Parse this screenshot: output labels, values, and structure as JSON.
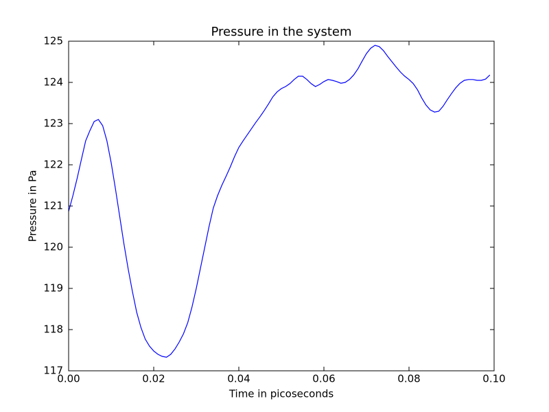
{
  "chart_data": {
    "type": "line",
    "title": "Pressure in the system",
    "xlabel": "Time in picoseconds",
    "ylabel": "Pressure in Pa",
    "x": [
      0,
      0.001,
      0.002,
      0.003,
      0.004,
      0.005,
      0.006,
      0.007,
      0.008,
      0.009,
      0.01,
      0.011,
      0.012,
      0.013,
      0.014,
      0.015,
      0.016,
      0.017,
      0.018,
      0.019,
      0.02,
      0.021,
      0.022,
      0.023,
      0.024,
      0.025,
      0.026,
      0.027,
      0.028,
      0.029,
      0.03,
      0.031,
      0.032,
      0.033,
      0.034,
      0.035,
      0.036,
      0.037,
      0.038,
      0.039,
      0.04,
      0.041,
      0.042,
      0.043,
      0.044,
      0.045,
      0.046,
      0.047,
      0.048,
      0.049,
      0.05,
      0.051,
      0.052,
      0.053,
      0.054,
      0.055,
      0.056,
      0.057,
      0.058,
      0.059,
      0.06,
      0.061,
      0.062,
      0.063,
      0.064,
      0.065,
      0.066,
      0.067,
      0.068,
      0.069,
      0.07,
      0.071,
      0.072,
      0.073,
      0.074,
      0.075,
      0.076,
      0.077,
      0.078,
      0.079,
      0.08,
      0.081,
      0.082,
      0.083,
      0.084,
      0.085,
      0.086,
      0.087,
      0.088,
      0.089,
      0.09,
      0.091,
      0.092,
      0.093,
      0.094,
      0.095,
      0.096,
      0.097,
      0.098,
      0.099
    ],
    "series": [
      {
        "color": "#0000ff",
        "values": [
          120.87,
          121.25,
          121.67,
          122.13,
          122.58,
          122.83,
          123.05,
          123.1,
          122.95,
          122.58,
          122.05,
          121.42,
          120.75,
          120.08,
          119.47,
          118.92,
          118.42,
          118.05,
          117.77,
          117.6,
          117.48,
          117.4,
          117.35,
          117.33,
          117.4,
          117.53,
          117.7,
          117.9,
          118.17,
          118.55,
          119.0,
          119.5,
          120.0,
          120.5,
          120.95,
          121.25,
          121.5,
          121.72,
          121.95,
          122.2,
          122.42,
          122.58,
          122.73,
          122.88,
          123.03,
          123.17,
          123.32,
          123.48,
          123.65,
          123.77,
          123.85,
          123.9,
          123.97,
          124.07,
          124.15,
          124.15,
          124.07,
          123.97,
          123.9,
          123.95,
          124.02,
          124.07,
          124.05,
          124.02,
          123.98,
          124.0,
          124.07,
          124.18,
          124.33,
          124.52,
          124.7,
          124.83,
          124.9,
          124.87,
          124.77,
          124.63,
          124.5,
          124.37,
          124.25,
          124.15,
          124.07,
          123.97,
          123.82,
          123.62,
          123.45,
          123.33,
          123.28,
          123.3,
          123.42,
          123.58,
          123.73,
          123.87,
          123.98,
          124.05,
          124.07,
          124.07,
          124.05,
          124.05,
          124.08,
          124.18
        ]
      }
    ],
    "xlim": [
      0,
      0.1
    ],
    "xticks": [
      {
        "value": 0,
        "label": "0.00"
      },
      {
        "value": 0.02,
        "label": "0.02"
      },
      {
        "value": 0.04,
        "label": "0.04"
      },
      {
        "value": 0.06,
        "label": "0.06"
      },
      {
        "value": 0.08,
        "label": "0.08"
      },
      {
        "value": 0.1,
        "label": "0.10"
      }
    ],
    "ylim": [
      117,
      125
    ],
    "yticks": [
      117,
      118,
      119,
      120,
      121,
      122,
      123,
      124,
      125
    ],
    "grid": false
  }
}
